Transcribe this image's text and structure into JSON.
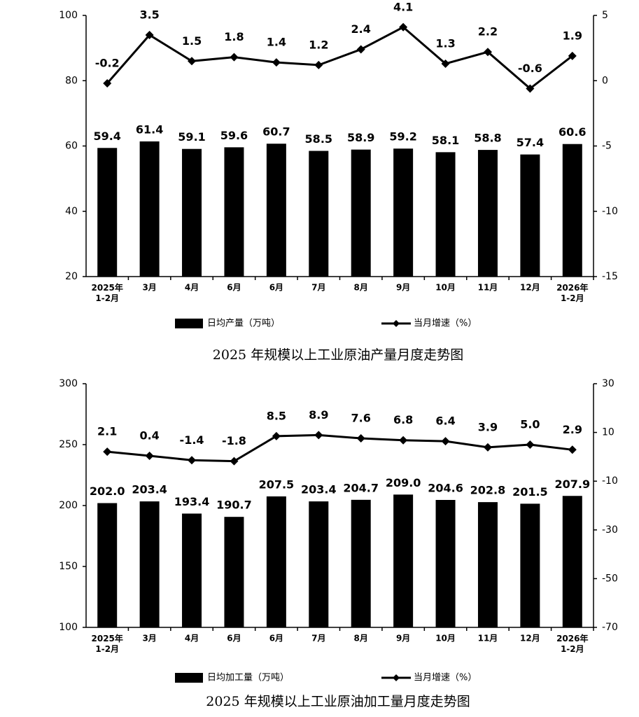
{
  "chart_data": [
    {
      "type": "bar-line",
      "title": "2025 年规模以上工业原油产量月度走势图",
      "categories": [
        "2025年\n1-2月",
        "3月",
        "4月",
        "6月",
        "6月",
        "7月",
        "8月",
        "9月",
        "10月",
        "11月",
        "12月",
        "2026年\n1-2月"
      ],
      "series": [
        {
          "name": "日均产量（万吨）",
          "type": "bar",
          "color": "#000000",
          "values": [
            59.4,
            61.4,
            59.1,
            59.6,
            60.7,
            58.5,
            58.9,
            59.2,
            58.1,
            58.8,
            57.4,
            60.6
          ]
        },
        {
          "name": "当月增速（%）",
          "type": "line",
          "axis": "y2",
          "color": "#000000",
          "values": [
            -0.2,
            3.5,
            1.5,
            1.8,
            1.4,
            1.2,
            2.4,
            4.1,
            1.3,
            2.2,
            -0.6,
            1.9
          ]
        }
      ],
      "ylim": [
        20,
        100
      ],
      "yticks": [
        20,
        40,
        60,
        80,
        100
      ],
      "y2lim": [
        -15,
        5
      ],
      "y2ticks": [
        -15,
        -10,
        -5,
        0,
        5
      ],
      "grid": false
    },
    {
      "type": "bar-line",
      "title": "2025 年规模以上工业原油加工量月度走势图",
      "categories": [
        "2025年\n1-2月",
        "3月",
        "4月",
        "6月",
        "6月",
        "7月",
        "8月",
        "9月",
        "10月",
        "11月",
        "12月",
        "2026年\n1-2月"
      ],
      "series": [
        {
          "name": "日均加工量（万吨）",
          "type": "bar",
          "color": "#000000",
          "values": [
            202.0,
            203.4,
            193.4,
            190.7,
            207.5,
            203.4,
            204.7,
            209.0,
            204.6,
            202.8,
            201.5,
            207.9
          ],
          "value_labels": [
            "202.0",
            "203.4",
            "193.4",
            "190.7",
            "207.5",
            "203.4",
            "204.7",
            "209.0",
            "204.6",
            "202.8",
            "201.5",
            "207.9"
          ]
        },
        {
          "name": "当月增速（%）",
          "type": "line",
          "axis": "y2",
          "color": "#000000",
          "values": [
            2.1,
            0.4,
            -1.4,
            -1.8,
            8.5,
            8.9,
            7.6,
            6.8,
            6.4,
            3.9,
            5.0,
            2.9
          ],
          "value_labels": [
            "2.1",
            "0.4",
            "-1.4",
            "-1.8",
            "8.5",
            "8.9",
            "7.6",
            "6.8",
            "6.4",
            "3.9",
            "5.0",
            "2.9"
          ]
        }
      ],
      "ylim": [
        100,
        300
      ],
      "yticks": [
        100,
        150,
        200,
        250,
        300
      ],
      "y2lim": [
        -70,
        30
      ],
      "y2ticks": [
        -70,
        -50,
        -30,
        -10,
        10,
        30
      ],
      "grid": false
    }
  ]
}
